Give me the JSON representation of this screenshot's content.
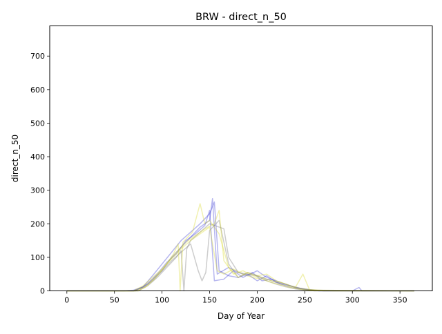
{
  "chart_data": {
    "type": "line",
    "title": "BRW - direct_n_50",
    "xlabel": "Day of Year",
    "ylabel": "direct_n_50",
    "xlim": [
      -18,
      384
    ],
    "ylim": [
      0,
      790
    ],
    "xticks": [
      0,
      50,
      100,
      150,
      200,
      250,
      300,
      350
    ],
    "yticks": [
      0,
      100,
      200,
      300,
      400,
      500,
      600,
      700
    ],
    "grid": false,
    "legend": "none",
    "colors": {
      "blue": "#3030d0",
      "gray": "#707070",
      "yellow": "#d8d820"
    },
    "series": [
      {
        "color": "blue",
        "x": [
          0,
          60,
          70,
          80,
          90,
          100,
          110,
          120,
          130,
          140,
          150,
          155,
          160,
          170,
          180,
          190,
          200,
          210,
          220,
          230,
          240,
          250,
          260,
          280,
          300,
          307,
          310,
          330,
          365
        ],
        "values": [
          0,
          0,
          2,
          12,
          45,
          80,
          115,
          150,
          175,
          200,
          230,
          265,
          60,
          45,
          40,
          50,
          30,
          45,
          25,
          20,
          10,
          5,
          2,
          1,
          0,
          10,
          0,
          0,
          0
        ]
      },
      {
        "color": "blue",
        "x": [
          0,
          70,
          80,
          90,
          100,
          110,
          120,
          130,
          140,
          150,
          153,
          158,
          170,
          180,
          190,
          200,
          210,
          220,
          230,
          240,
          250,
          270,
          365
        ],
        "values": [
          0,
          0,
          10,
          30,
          60,
          100,
          130,
          160,
          190,
          210,
          275,
          50,
          70,
          55,
          45,
          60,
          40,
          30,
          20,
          10,
          5,
          0,
          0
        ]
      },
      {
        "color": "blue",
        "x": [
          0,
          72,
          85,
          95,
          105,
          115,
          125,
          135,
          145,
          150,
          155,
          165,
          175,
          185,
          195,
          205,
          215,
          225,
          235,
          245,
          255,
          265,
          365
        ],
        "values": [
          0,
          0,
          20,
          50,
          85,
          110,
          150,
          170,
          195,
          240,
          30,
          35,
          60,
          40,
          55,
          30,
          35,
          20,
          15,
          8,
          3,
          0,
          0
        ]
      },
      {
        "color": "gray",
        "x": [
          0,
          75,
          85,
          95,
          105,
          115,
          120,
          123,
          126,
          130,
          140,
          150,
          160,
          165,
          170,
          180,
          190,
          200,
          210,
          220,
          230,
          240,
          250,
          260,
          365
        ],
        "values": [
          0,
          0,
          15,
          40,
          70,
          100,
          120,
          0,
          125,
          150,
          175,
          200,
          190,
          185,
          100,
          55,
          50,
          45,
          35,
          25,
          15,
          8,
          4,
          0,
          0
        ]
      },
      {
        "color": "gray",
        "x": [
          0,
          70,
          80,
          90,
          100,
          110,
          120,
          130,
          138,
          142,
          146,
          150,
          160,
          170,
          180,
          190,
          200,
          210,
          220,
          230,
          240,
          250,
          365
        ],
        "values": [
          0,
          0,
          12,
          35,
          60,
          90,
          115,
          140,
          60,
          30,
          55,
          180,
          210,
          80,
          40,
          55,
          45,
          30,
          20,
          12,
          6,
          2,
          0
        ]
      },
      {
        "color": "yellow",
        "x": [
          0,
          72,
          82,
          92,
          102,
          112,
          117,
          119,
          122,
          132,
          140,
          145,
          150,
          160,
          170,
          180,
          190,
          200,
          210,
          220,
          230,
          240,
          248,
          255,
          270,
          365
        ],
        "values": [
          0,
          0,
          10,
          35,
          70,
          110,
          140,
          0,
          145,
          175,
          260,
          200,
          210,
          170,
          70,
          40,
          55,
          45,
          50,
          30,
          20,
          10,
          50,
          3,
          0,
          0
        ]
      },
      {
        "color": "yellow",
        "x": [
          0,
          75,
          85,
          95,
          105,
          115,
          125,
          135,
          145,
          155,
          160,
          165,
          175,
          185,
          195,
          205,
          215,
          225,
          235,
          245,
          255,
          265,
          280,
          365
        ],
        "values": [
          0,
          0,
          18,
          45,
          80,
          115,
          145,
          165,
          185,
          200,
          240,
          90,
          50,
          60,
          45,
          40,
          30,
          25,
          15,
          8,
          4,
          2,
          0,
          0
        ]
      },
      {
        "color": "yellow",
        "x": [
          0,
          70,
          80,
          90,
          100,
          110,
          120,
          130,
          140,
          150,
          158,
          165,
          175,
          185,
          195,
          205,
          215,
          225,
          235,
          245,
          255,
          365
        ],
        "values": [
          0,
          0,
          15,
          40,
          65,
          95,
          125,
          150,
          170,
          190,
          60,
          50,
          65,
          50,
          40,
          35,
          25,
          18,
          10,
          5,
          2,
          0
        ]
      }
    ]
  }
}
